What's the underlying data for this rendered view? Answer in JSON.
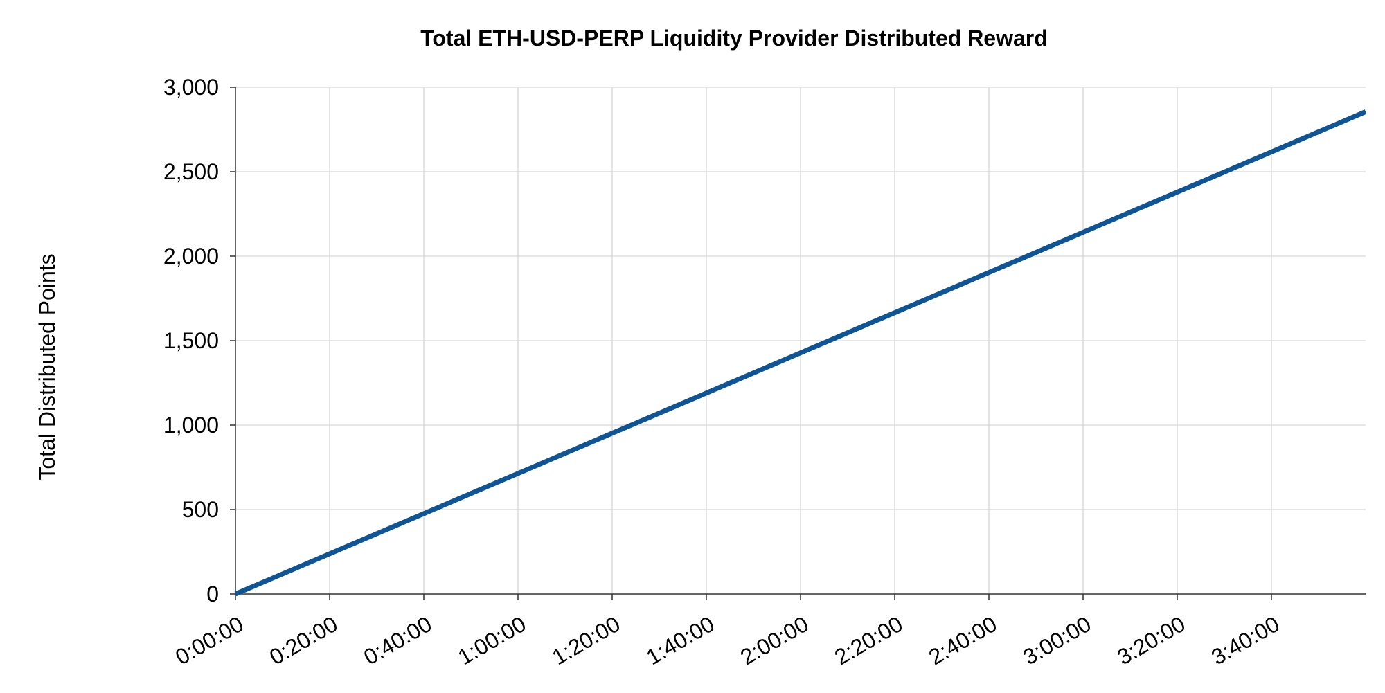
{
  "chart_data": {
    "type": "line",
    "title": "Total ETH-USD-PERP Liquidity Provider Distributed Reward",
    "xlabel": "",
    "ylabel": "Total Distributed Points",
    "x_ticks": [
      "0:00:00",
      "0:20:00",
      "0:40:00",
      "1:00:00",
      "1:20:00",
      "1:40:00",
      "2:00:00",
      "2:20:00",
      "2:40:00",
      "3:00:00",
      "3:20:00",
      "3:40:00"
    ],
    "y_ticks": [
      "0",
      "500",
      "1,000",
      "1,500",
      "2,000",
      "2,500",
      "3,000"
    ],
    "xlim": [
      "0:00:00",
      "4:00:00"
    ],
    "ylim": [
      0,
      3000
    ],
    "grid": true,
    "legend": "none",
    "series": [
      {
        "color": "#0f5596",
        "x": [
          "0:00:00",
          "4:00:00"
        ],
        "y": [
          0,
          2855
        ]
      }
    ]
  }
}
